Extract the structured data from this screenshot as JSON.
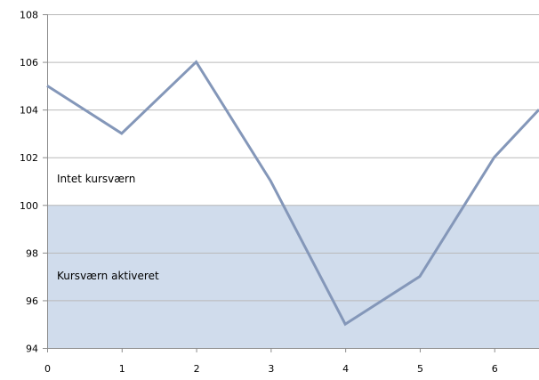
{
  "chart_data": {
    "type": "line",
    "title": "",
    "xlabel": "",
    "ylabel": "",
    "x": [
      0,
      1,
      2,
      3,
      4,
      5,
      6,
      6.6
    ],
    "xticks": [
      0,
      1,
      2,
      3,
      4,
      5,
      6
    ],
    "xlim": [
      0,
      6.6
    ],
    "ylim": [
      94,
      108
    ],
    "yticks": [
      94,
      96,
      98,
      100,
      102,
      104,
      106,
      108
    ],
    "grid": "horizontal",
    "series": [
      {
        "name": "",
        "values": [
          105,
          103,
          106,
          101,
          95,
          97,
          102,
          104
        ]
      }
    ],
    "threshold": 100,
    "regions": {
      "above_label": "Intet kursværn",
      "below_label": "Kursværn aktiveret"
    },
    "colors": {
      "line": "#8497B9",
      "shade": "#D0DCEC",
      "grid": "#B9B9B9",
      "axis": "#8C8C8C",
      "text": "#000000"
    }
  }
}
